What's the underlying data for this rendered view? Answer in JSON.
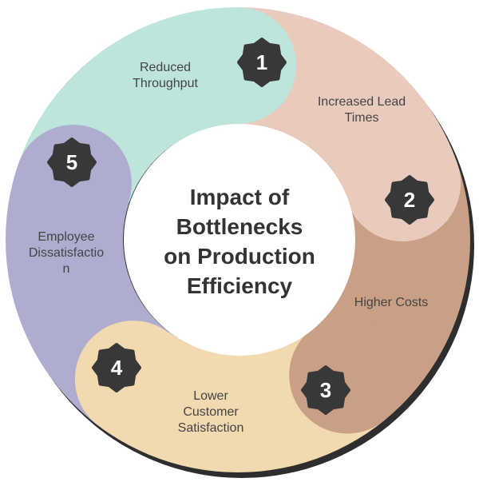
{
  "title": [
    "Impact of",
    "Bottlenecks",
    "on Production",
    "Efficiency"
  ],
  "segments": [
    {
      "number": "1",
      "label": [
        "Reduced",
        "Throughput"
      ],
      "color": "#bde5dc"
    },
    {
      "number": "2",
      "label": [
        "Increased Lead",
        "Times"
      ],
      "color": "#e9cbbd"
    },
    {
      "number": "3",
      "label": [
        "Higher Costs"
      ],
      "color": "#c9a085"
    },
    {
      "number": "4",
      "label": [
        "Lower",
        "Customer",
        "Satisfaction"
      ],
      "color": "#f1d9b0"
    },
    {
      "number": "5",
      "label": [
        "Employee",
        "Dissatisfactio",
        "n"
      ],
      "color": "#aeadd0"
    }
  ],
  "badge_color": "#383838",
  "shadow_color": "#2e2e2e"
}
